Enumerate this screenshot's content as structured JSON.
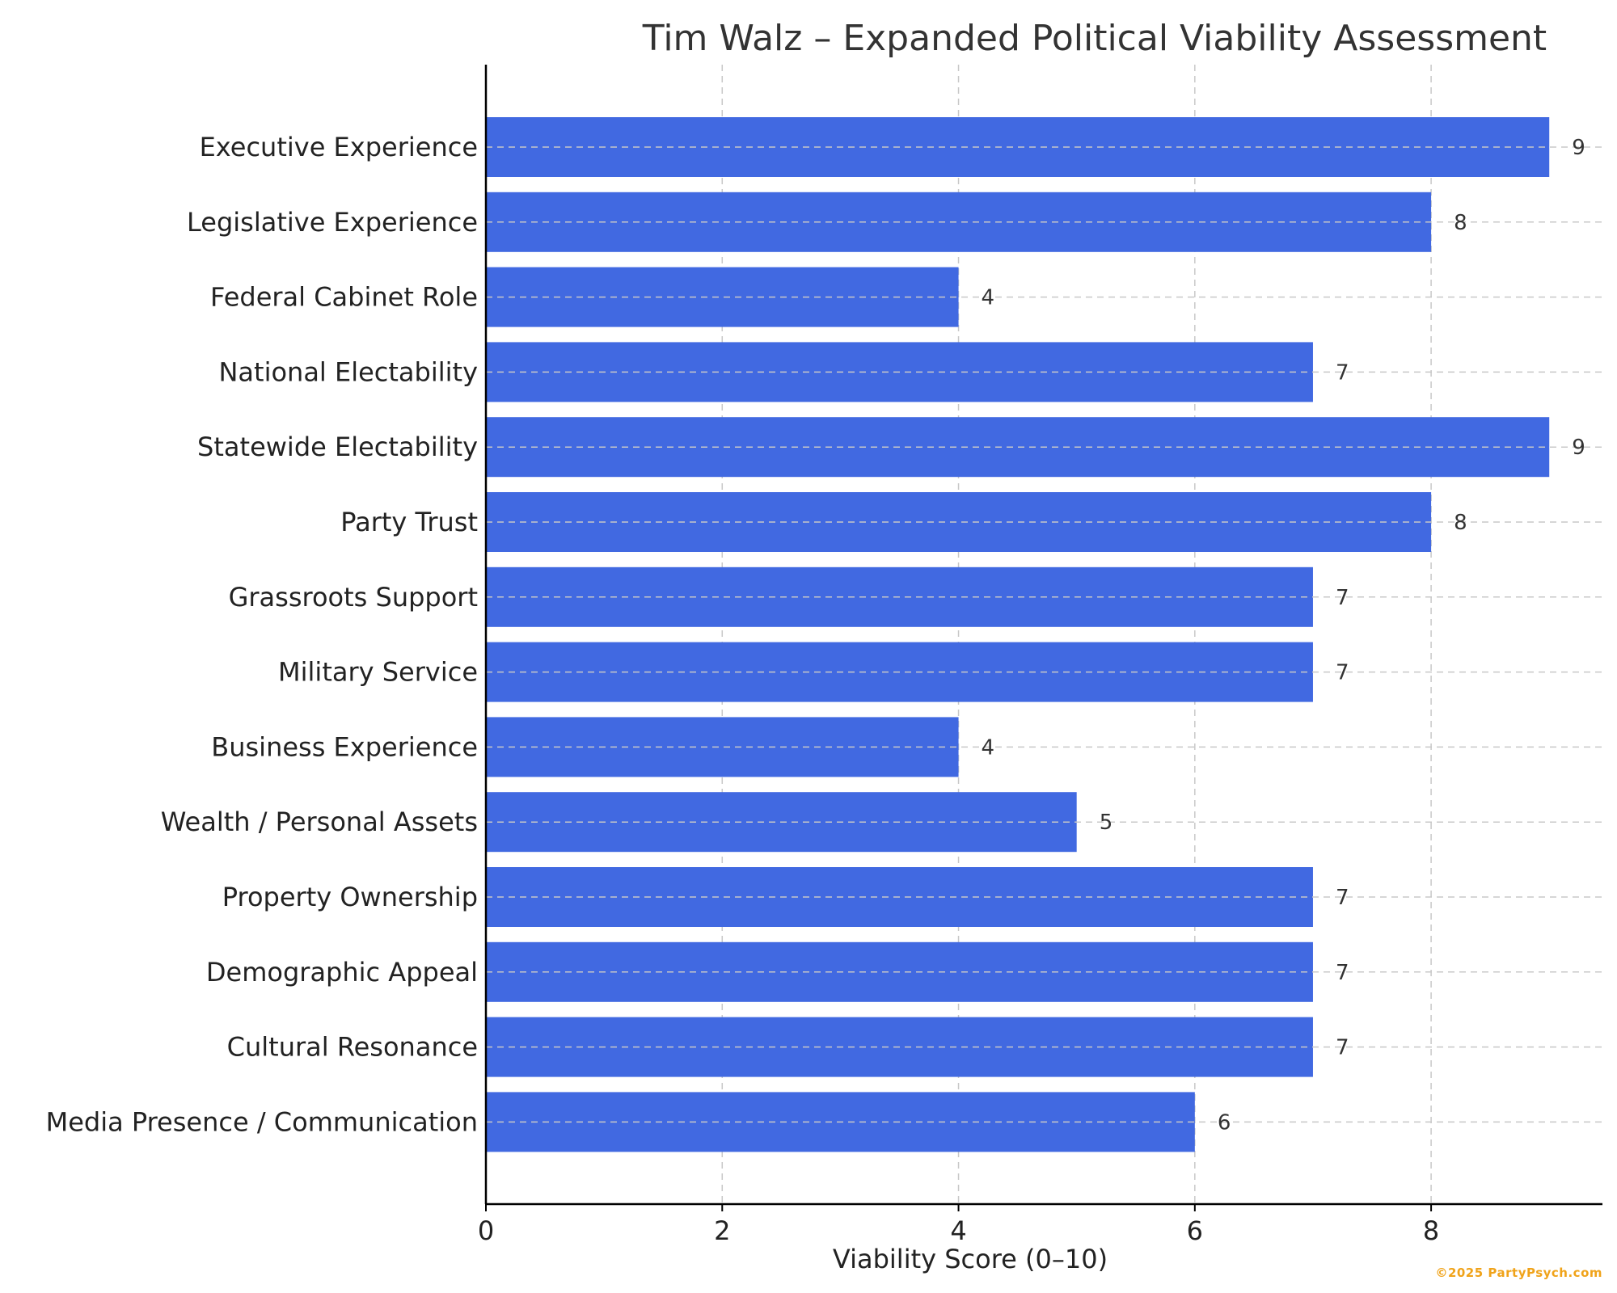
{
  "chart_data": {
    "type": "bar",
    "orientation": "horizontal",
    "title": "Tim Walz – Expanded Political Viability Assessment",
    "xlabel": "Viability Score (0–10)",
    "ylabel": "",
    "categories": [
      "Executive Experience",
      "Legislative Experience",
      "Federal Cabinet Role",
      "National Electability",
      "Statewide Electability",
      "Party Trust",
      "Grassroots Support",
      "Military Service",
      "Business Experience",
      "Wealth / Personal Assets",
      "Property Ownership",
      "Demographic Appeal",
      "Cultural Resonance",
      "Media Presence / Communication"
    ],
    "values": [
      9,
      8,
      4,
      7,
      9,
      8,
      7,
      7,
      4,
      5,
      7,
      7,
      7,
      6
    ],
    "xlim": [
      0,
      9.45
    ],
    "xticks": [
      0,
      2,
      4,
      6,
      8
    ],
    "grid": true,
    "bar_color": "#4169e1"
  },
  "credit": "©2025 PartyPsych.com"
}
